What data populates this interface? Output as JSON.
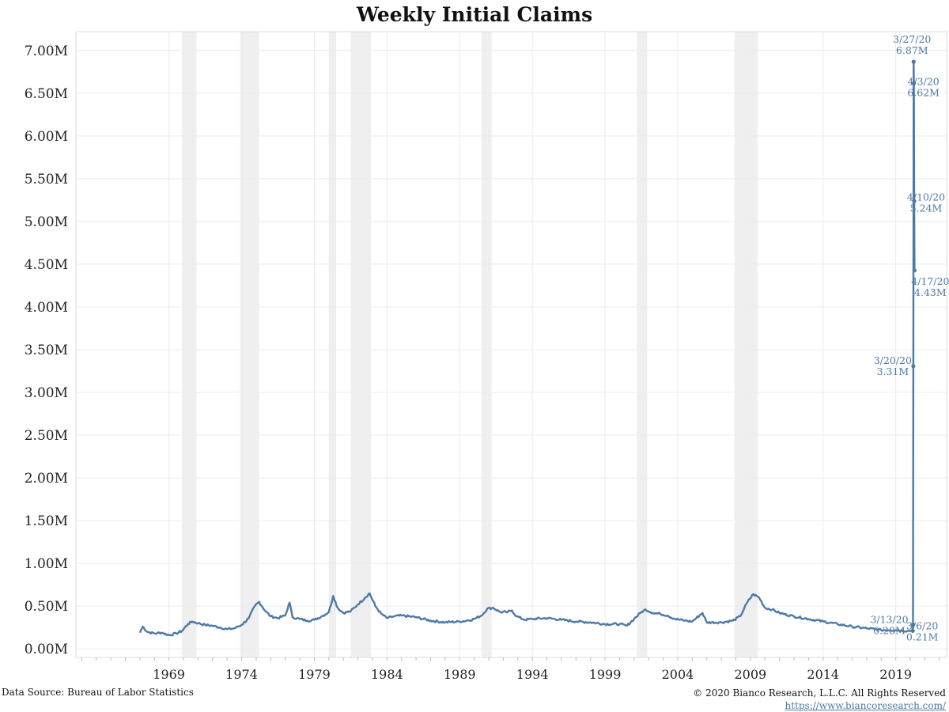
{
  "chart_data": {
    "type": "line",
    "title": "Weekly Initial Claims",
    "xlabel": "",
    "ylabel": "",
    "x_range": [
      1962.6,
      2022.5
    ],
    "ylim": [
      -100000,
      7220000
    ],
    "yticks": [
      {
        "value": 0,
        "label": "0.00M"
      },
      {
        "value": 500000,
        "label": "0.50M"
      },
      {
        "value": 1000000,
        "label": "1.00M"
      },
      {
        "value": 1500000,
        "label": "1.50M"
      },
      {
        "value": 2000000,
        "label": "2.00M"
      },
      {
        "value": 2500000,
        "label": "2.50M"
      },
      {
        "value": 3000000,
        "label": "3.00M"
      },
      {
        "value": 3500000,
        "label": "3.50M"
      },
      {
        "value": 4000000,
        "label": "4.00M"
      },
      {
        "value": 4500000,
        "label": "4.50M"
      },
      {
        "value": 5000000,
        "label": "5.00M"
      },
      {
        "value": 5500000,
        "label": "5.50M"
      },
      {
        "value": 6000000,
        "label": "6.00M"
      },
      {
        "value": 6500000,
        "label": "6.50M"
      },
      {
        "value": 7000000,
        "label": "7.00M"
      }
    ],
    "xticks": [
      "1969",
      "1974",
      "1979",
      "1984",
      "1989",
      "1994",
      "1999",
      "2004",
      "2009",
      "2014",
      "2019"
    ],
    "grid": true,
    "recessions": [
      [
        1969.9,
        1970.9
      ],
      [
        1973.9,
        1975.2
      ],
      [
        1980.0,
        1980.5
      ],
      [
        1981.5,
        1982.9
      ],
      [
        1990.5,
        1991.2
      ],
      [
        2001.2,
        2001.9
      ],
      [
        2007.9,
        2009.5
      ]
    ],
    "series": [
      {
        "color": "#4e79a7",
        "x": [
          1967.0,
          1967.2,
          1967.5,
          1968.0,
          1968.5,
          1969.0,
          1969.5,
          1969.9,
          1970.3,
          1970.6,
          1971.0,
          1971.5,
          1972.0,
          1972.5,
          1973.0,
          1973.5,
          1974.0,
          1974.5,
          1974.9,
          1975.2,
          1975.6,
          1976.0,
          1976.5,
          1977.0,
          1977.3,
          1977.5,
          1978.0,
          1978.5,
          1979.0,
          1979.5,
          1980.0,
          1980.3,
          1980.6,
          1981.0,
          1981.5,
          1982.0,
          1982.5,
          1982.8,
          1983.2,
          1983.6,
          1984.0,
          1984.5,
          1985.0,
          1986.0,
          1987.0,
          1988.0,
          1989.0,
          1989.5,
          1990.0,
          1990.5,
          1990.9,
          1991.3,
          1991.8,
          1992.3,
          1992.6,
          1992.9,
          1993.5,
          1994.0,
          1995.0,
          1996.0,
          1997.0,
          1998.0,
          1999.0,
          2000.0,
          2000.5,
          2001.0,
          2001.5,
          2001.8,
          2002.3,
          2002.8,
          2003.3,
          2003.8,
          2004.5,
          2005.0,
          2005.7,
          2006.0,
          2007.0,
          2007.8,
          2008.3,
          2008.8,
          2009.2,
          2009.6,
          2010.0,
          2010.5,
          2011.0,
          2012.0,
          2013.0,
          2014.0,
          2015.0,
          2016.0,
          2017.0,
          2018.0,
          2019.0,
          2019.8,
          2020.17,
          2020.19,
          2020.21,
          2020.23,
          2020.25,
          2020.27,
          2020.29
        ],
        "y": [
          190000,
          260000,
          200000,
          180000,
          190000,
          160000,
          180000,
          210000,
          290000,
          320000,
          300000,
          280000,
          270000,
          250000,
          230000,
          240000,
          280000,
          360000,
          500000,
          550000,
          450000,
          380000,
          360000,
          390000,
          540000,
          370000,
          350000,
          330000,
          340000,
          380000,
          430000,
          620000,
          480000,
          420000,
          440000,
          520000,
          600000,
          650000,
          500000,
          410000,
          360000,
          380000,
          390000,
          370000,
          330000,
          310000,
          320000,
          330000,
          350000,
          390000,
          470000,
          480000,
          430000,
          430000,
          450000,
          380000,
          340000,
          350000,
          360000,
          340000,
          320000,
          310000,
          290000,
          290000,
          270000,
          350000,
          430000,
          460000,
          420000,
          410000,
          390000,
          350000,
          330000,
          320000,
          420000,
          310000,
          310000,
          330000,
          380000,
          550000,
          640000,
          600000,
          480000,
          460000,
          420000,
          380000,
          350000,
          320000,
          290000,
          260000,
          240000,
          220000,
          220000,
          210000,
          211000,
          282000,
          3307000,
          6867000,
          6615000,
          5237000,
          4427000
        ]
      }
    ],
    "annotations": [
      {
        "date": "3/27/20",
        "value": "6.87M",
        "x": 2020.23,
        "y": 6867000
      },
      {
        "date": "4/3/20",
        "value": "6.62M",
        "x": 2020.25,
        "y": 6615000
      },
      {
        "date": "4/10/20",
        "value": "5.24M",
        "x": 2020.27,
        "y": 5237000
      },
      {
        "date": "4/17/20",
        "value": "4.43M",
        "x": 2020.29,
        "y": 4427000
      },
      {
        "date": "3/20/20",
        "value": "3.31M",
        "x": 2020.21,
        "y": 3307000
      },
      {
        "date": "3/13/20",
        "value": "0.28M",
        "x": 2020.19,
        "y": 282000
      },
      {
        "date": "3/6/20",
        "value": "0.21M",
        "x": 2020.17,
        "y": 211000
      }
    ]
  },
  "footer": {
    "source": "Data Source: Bureau of Labor Statistics",
    "copyright": "© 2020 Bianco Research, L.L.C. All Rights Reserved",
    "url": "https://www.biancoresearch.com/"
  },
  "colors": {
    "line": "#4e79a7",
    "recession": "#efefef",
    "grid": "#ececec"
  }
}
